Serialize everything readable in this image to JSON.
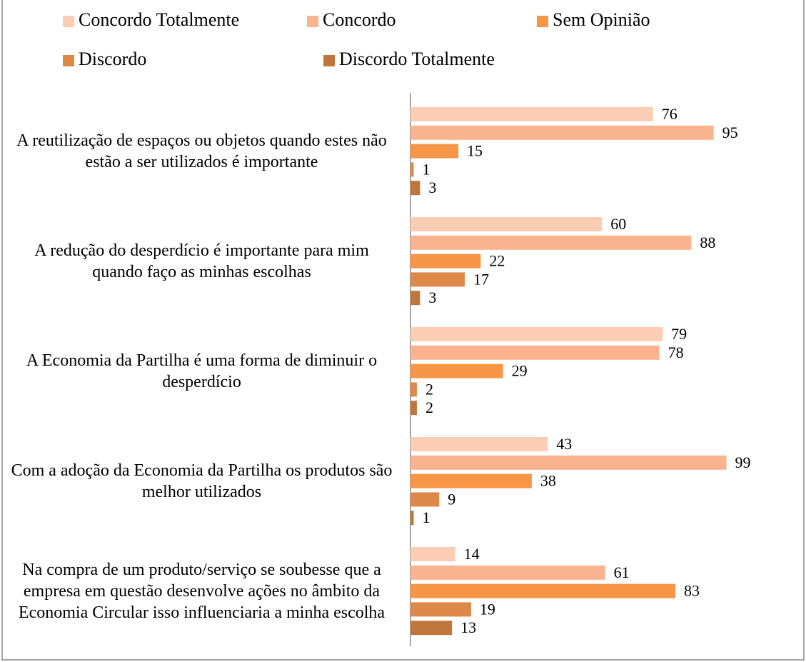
{
  "chart_data": {
    "type": "hbar",
    "categories": [
      "A reutilização de espaços ou objetos quando estes não estão a ser utilizados é importante",
      "A redução do desperdício é importante para mim quando faço as minhas escolhas",
      "A Economia da Partilha é uma forma de diminuir o desperdício",
      "Com a adoção da Economia da Partilha os produtos são melhor utilizados",
      "Na compra de um produto/serviço se soubesse que a empresa em questão desenvolve ações no âmbito da Economia Circular isso influenciaria a minha escolha"
    ],
    "series": [
      {
        "name": "Concordo Totalmente",
        "color": "#fbcdb5",
        "values": [
          76,
          60,
          79,
          43,
          14
        ]
      },
      {
        "name": "Concordo",
        "color": "#f9b48f",
        "values": [
          95,
          88,
          78,
          99,
          61
        ]
      },
      {
        "name": "Sem Opinião",
        "color": "#f79646",
        "values": [
          15,
          22,
          29,
          38,
          83
        ]
      },
      {
        "name": "Discordo",
        "color": "#de884a",
        "values": [
          1,
          17,
          2,
          9,
          19
        ]
      },
      {
        "name": "Discordo Totalmente",
        "color": "#bf763d",
        "values": [
          3,
          3,
          2,
          1,
          13
        ]
      }
    ],
    "legend": "top"
  }
}
